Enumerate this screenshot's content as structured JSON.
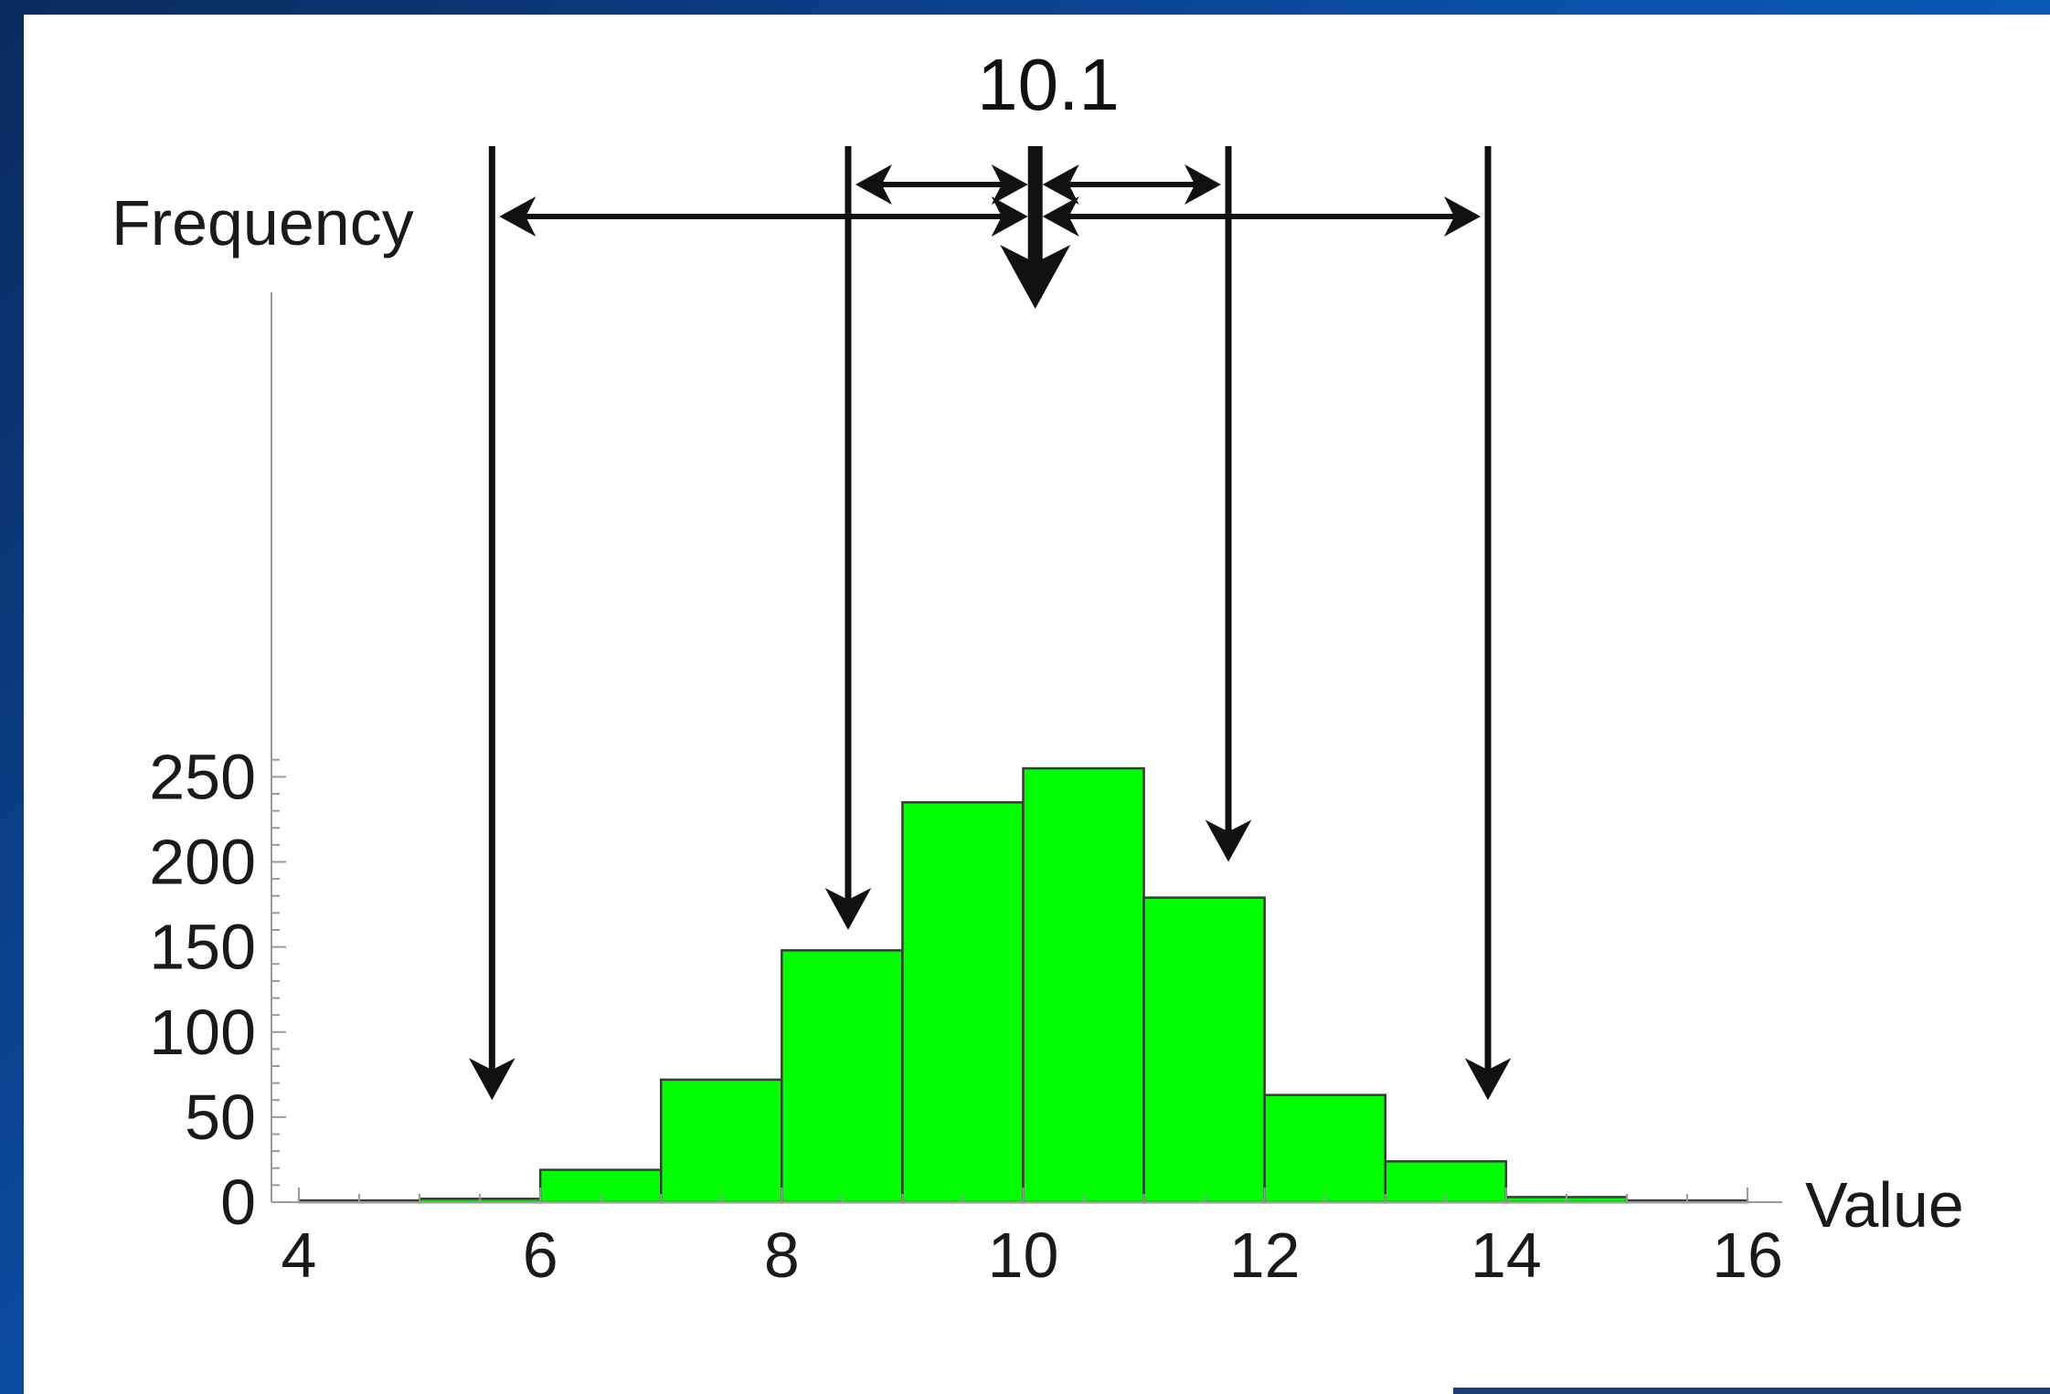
{
  "chart_data": {
    "type": "bar",
    "title": "",
    "xlabel": "Value",
    "ylabel": "Frequency",
    "x_bins": [
      [
        4,
        5
      ],
      [
        5,
        6
      ],
      [
        6,
        7
      ],
      [
        7,
        8
      ],
      [
        8,
        9
      ],
      [
        9,
        10
      ],
      [
        10,
        11
      ],
      [
        11,
        12
      ],
      [
        12,
        13
      ],
      [
        13,
        14
      ],
      [
        14,
        15
      ],
      [
        15,
        16
      ]
    ],
    "values": [
      1,
      2,
      19,
      72,
      148,
      235,
      255,
      179,
      63,
      24,
      3,
      1
    ],
    "xlim": [
      4,
      16
    ],
    "ylim": [
      0,
      270
    ],
    "x_ticks": [
      4,
      6,
      8,
      10,
      12,
      14,
      16
    ],
    "y_ticks": [
      0,
      50,
      100,
      150,
      200,
      250
    ],
    "bar_color": "#00ff00",
    "grid": false,
    "annotations": {
      "mean_label": "10.1",
      "mean": 10.1,
      "marker_arrows_x": [
        5.6,
        8.55,
        11.7,
        13.85
      ],
      "arrow_tips_y": [
        60,
        160,
        200,
        60
      ]
    }
  },
  "colors": {
    "background_dark": "#0a2a5c",
    "background_light": "#0a6fe0",
    "panel": "#ffffff",
    "bar_fill": "#00ff00",
    "bar_edge": "#3a3a3a",
    "ink": "#111111"
  }
}
